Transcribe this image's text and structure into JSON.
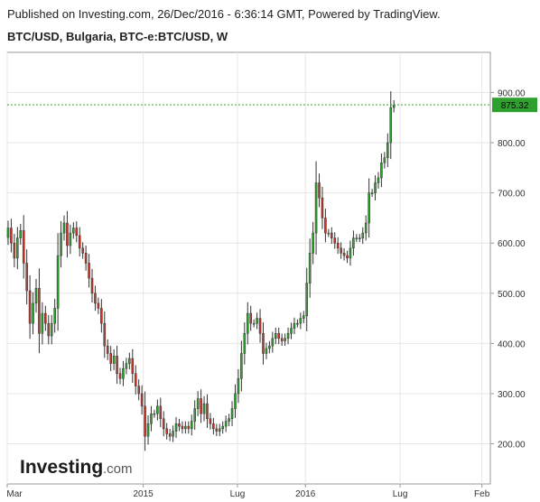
{
  "header": {
    "published": "Published on Investing.com, 26/Dec/2016 - 6:36:14 GMT, Powered by TradingView.",
    "symbol": "BTC/USD, Bulgaria, BTC-e:BTC/USD, W"
  },
  "brand": {
    "name": "Investing",
    "suffix": ".com"
  },
  "colors": {
    "up": "#2ea02e",
    "down": "#c0392b",
    "last_line": "#2ea02e",
    "grid": "#e6e6e6",
    "axis": "#333333"
  },
  "chart_data": {
    "type": "candlestick",
    "interval": "W",
    "ylim": [
      120,
      980
    ],
    "y_ticks": [
      200,
      300,
      400,
      500,
      600,
      700,
      800,
      900
    ],
    "y_tick_labels": [
      "200.00",
      "300.00",
      "400.00",
      "500.00",
      "600.00",
      "700.00",
      "800.00",
      "900.00"
    ],
    "x_start": "2014-03-01",
    "x_end": "2017-02-20",
    "x_ticks": [
      {
        "date": "2014-03-01",
        "label": "Mar"
      },
      {
        "date": "2015-01-01",
        "label": "2015"
      },
      {
        "date": "2015-08-01",
        "label": "Lug"
      },
      {
        "date": "2016-01-01",
        "label": "2016"
      },
      {
        "date": "2016-08-01",
        "label": "Lug"
      },
      {
        "date": "2017-02-01",
        "label": "Feb"
      }
    ],
    "last_price": 875.32,
    "last_price_label": "875.32",
    "grid": true,
    "weekly_close": [
      630,
      600,
      570,
      610,
      625,
      560,
      505,
      440,
      480,
      510,
      420,
      460,
      440,
      415,
      440,
      470,
      575,
      620,
      640,
      595,
      620,
      630,
      615,
      590,
      580,
      560,
      530,
      500,
      480,
      470,
      440,
      395,
      380,
      360,
      375,
      340,
      330,
      350,
      360,
      370,
      340,
      315,
      300,
      275,
      215,
      240,
      260,
      260,
      275,
      250,
      230,
      220,
      215,
      225,
      240,
      235,
      230,
      235,
      230,
      245,
      270,
      290,
      260,
      280,
      250,
      240,
      230,
      225,
      230,
      235,
      245,
      250,
      270,
      300,
      330,
      380,
      420,
      460,
      440,
      440,
      450,
      420,
      380,
      390,
      395,
      410,
      420,
      410,
      405,
      410,
      420,
      430,
      440,
      440,
      450,
      455,
      520,
      580,
      620,
      720,
      690,
      650,
      620,
      620,
      610,
      600,
      590,
      580,
      575,
      570,
      590,
      610,
      610,
      610,
      620,
      640,
      700,
      700,
      720,
      730,
      760,
      770,
      800,
      870,
      875
    ]
  }
}
